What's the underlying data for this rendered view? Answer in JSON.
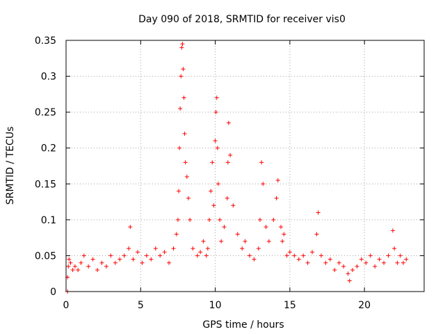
{
  "chart_data": {
    "type": "scatter",
    "title": "Day 090 of 2018, SRMTID for receiver vis0",
    "xlabel": "GPS time / hours",
    "ylabel": "SRMTID / TECUs",
    "xlim": [
      0,
      24
    ],
    "ylim": [
      0,
      0.35
    ],
    "xticks": [
      0,
      5,
      10,
      15,
      20
    ],
    "xtick_labels": [
      "0",
      "5",
      "10",
      "15",
      "20"
    ],
    "yticks": [
      0,
      0.05,
      0.1,
      0.15,
      0.2,
      0.25,
      0.3,
      0.35
    ],
    "ytick_labels": [
      "0",
      "0.05",
      "0.1",
      "0.15",
      "0.2",
      "0.25",
      "0.3",
      "0.35"
    ],
    "grid": true,
    "marker": "+",
    "color": "#ff0000",
    "series": [
      {
        "name": "SRMTID vis0",
        "x": [
          0.1,
          0.1,
          0.15,
          0.2,
          0.3,
          0.45,
          0.6,
          0.8,
          1.0,
          1.2,
          1.5,
          1.8,
          2.1,
          2.4,
          2.7,
          3.0,
          3.3,
          3.6,
          3.9,
          4.2,
          4.3,
          4.5,
          4.8,
          5.1,
          5.4,
          5.7,
          6.0,
          6.3,
          6.6,
          6.9,
          7.2,
          7.4,
          7.5,
          7.55,
          7.6,
          7.65,
          7.7,
          7.75,
          7.8,
          7.85,
          7.9,
          7.95,
          8.0,
          8.1,
          8.2,
          8.3,
          8.5,
          8.8,
          9.0,
          9.2,
          9.4,
          9.5,
          9.6,
          9.7,
          9.8,
          9.9,
          10.0,
          10.05,
          10.1,
          10.15,
          10.2,
          10.3,
          10.4,
          10.6,
          10.8,
          10.85,
          10.9,
          11.0,
          11.2,
          11.5,
          11.8,
          12.0,
          12.3,
          12.6,
          12.9,
          13.0,
          13.1,
          13.2,
          13.4,
          13.6,
          13.9,
          14.1,
          14.2,
          14.4,
          14.5,
          14.6,
          14.8,
          15.0,
          15.3,
          15.6,
          15.9,
          16.2,
          16.5,
          16.8,
          16.9,
          17.1,
          17.4,
          17.7,
          18.0,
          18.3,
          18.6,
          18.9,
          19.0,
          19.2,
          19.5,
          19.8,
          20.1,
          20.4,
          20.7,
          21.0,
          21.3,
          21.6,
          21.9,
          22.0,
          22.2,
          22.4,
          22.6,
          22.8
        ],
        "y": [
          0.0,
          0.02,
          0.035,
          0.045,
          0.04,
          0.03,
          0.035,
          0.03,
          0.04,
          0.05,
          0.035,
          0.045,
          0.03,
          0.04,
          0.035,
          0.05,
          0.04,
          0.045,
          0.05,
          0.06,
          0.09,
          0.045,
          0.055,
          0.04,
          0.05,
          0.045,
          0.06,
          0.05,
          0.055,
          0.04,
          0.06,
          0.08,
          0.1,
          0.14,
          0.2,
          0.255,
          0.3,
          0.34,
          0.345,
          0.31,
          0.27,
          0.22,
          0.18,
          0.16,
          0.13,
          0.1,
          0.06,
          0.05,
          0.055,
          0.07,
          0.05,
          0.06,
          0.1,
          0.14,
          0.18,
          0.12,
          0.21,
          0.25,
          0.27,
          0.2,
          0.15,
          0.1,
          0.07,
          0.09,
          0.13,
          0.18,
          0.235,
          0.19,
          0.12,
          0.08,
          0.06,
          0.07,
          0.05,
          0.045,
          0.06,
          0.1,
          0.18,
          0.15,
          0.09,
          0.07,
          0.1,
          0.13,
          0.155,
          0.09,
          0.07,
          0.08,
          0.05,
          0.055,
          0.05,
          0.045,
          0.05,
          0.04,
          0.055,
          0.08,
          0.11,
          0.05,
          0.04,
          0.045,
          0.03,
          0.04,
          0.035,
          0.025,
          0.015,
          0.03,
          0.035,
          0.045,
          0.04,
          0.05,
          0.035,
          0.045,
          0.04,
          0.05,
          0.085,
          0.06,
          0.04,
          0.05,
          0.04,
          0.045
        ]
      }
    ]
  }
}
